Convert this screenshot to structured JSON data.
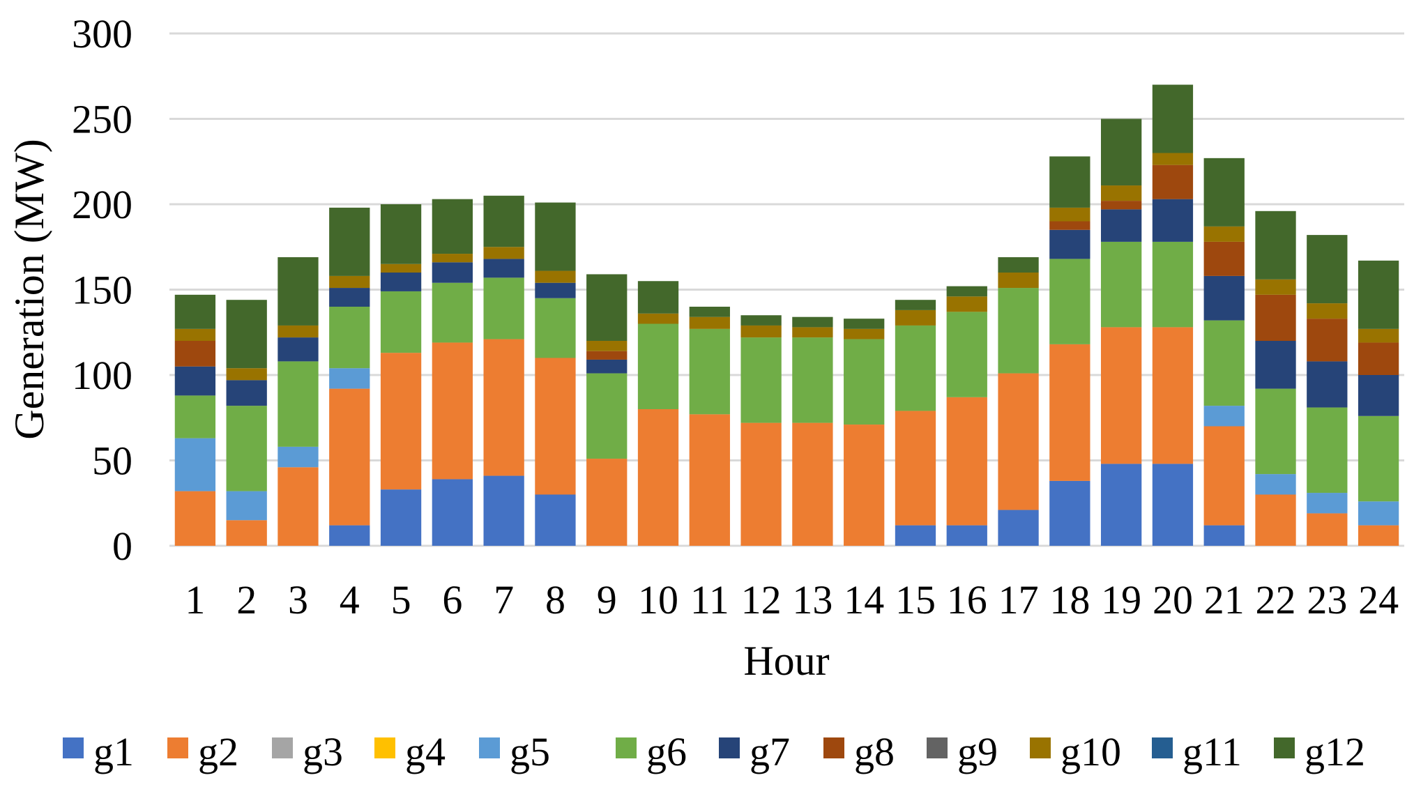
{
  "chart_data": {
    "type": "bar",
    "stacked": true,
    "title": "",
    "xlabel": "Hour",
    "ylabel": "Generation (MW)",
    "ylim": [
      0,
      300
    ],
    "yticks": [
      0,
      50,
      100,
      150,
      200,
      250,
      300
    ],
    "grid": true,
    "legend_position": "bottom",
    "categories": [
      "1",
      "2",
      "3",
      "4",
      "5",
      "6",
      "7",
      "8",
      "9",
      "10",
      "11",
      "12",
      "13",
      "14",
      "15",
      "16",
      "17",
      "18",
      "19",
      "20",
      "21",
      "22",
      "23",
      "24"
    ],
    "series": [
      {
        "name": "g1",
        "color": "#4472C4",
        "values": [
          0,
          0,
          0,
          12,
          33,
          39,
          41,
          30,
          0,
          0,
          0,
          0,
          0,
          0,
          12,
          12,
          21,
          38,
          48,
          48,
          12,
          0,
          0,
          0
        ]
      },
      {
        "name": "g2",
        "color": "#ED7D31",
        "values": [
          32,
          15,
          46,
          80,
          80,
          80,
          80,
          80,
          51,
          80,
          77,
          72,
          72,
          71,
          67,
          75,
          80,
          80,
          80,
          80,
          58,
          30,
          19,
          12
        ]
      },
      {
        "name": "g3",
        "color": "#A5A5A5",
        "values": [
          0,
          0,
          0,
          0,
          0,
          0,
          0,
          0,
          0,
          0,
          0,
          0,
          0,
          0,
          0,
          0,
          0,
          0,
          0,
          0,
          0,
          0,
          0,
          0
        ]
      },
      {
        "name": "g4",
        "color": "#FFC000",
        "values": [
          0,
          0,
          0,
          0,
          0,
          0,
          0,
          0,
          0,
          0,
          0,
          0,
          0,
          0,
          0,
          0,
          0,
          0,
          0,
          0,
          0,
          0,
          0,
          0
        ]
      },
      {
        "name": "g5",
        "color": "#5B9BD5",
        "values": [
          31,
          17,
          12,
          12,
          0,
          0,
          0,
          0,
          0,
          0,
          0,
          0,
          0,
          0,
          0,
          0,
          0,
          0,
          0,
          0,
          12,
          12,
          12,
          14
        ]
      },
      {
        "name": "g6",
        "color": "#70AD47",
        "values": [
          25,
          50,
          50,
          36,
          36,
          35,
          36,
          35,
          50,
          50,
          50,
          50,
          50,
          50,
          50,
          50,
          50,
          50,
          50,
          50,
          50,
          50,
          50,
          50
        ]
      },
      {
        "name": "g7",
        "color": "#264478",
        "values": [
          17,
          15,
          14,
          11,
          11,
          12,
          11,
          9,
          8,
          0,
          0,
          0,
          0,
          0,
          0,
          0,
          0,
          17,
          19,
          25,
          26,
          28,
          27,
          24
        ]
      },
      {
        "name": "g8",
        "color": "#9E480E",
        "values": [
          15,
          0,
          0,
          0,
          0,
          0,
          0,
          0,
          5,
          0,
          0,
          0,
          0,
          0,
          0,
          0,
          0,
          5,
          5,
          20,
          20,
          27,
          25,
          19
        ]
      },
      {
        "name": "g9",
        "color": "#636363",
        "values": [
          0,
          0,
          0,
          0,
          0,
          0,
          0,
          0,
          0,
          0,
          0,
          0,
          0,
          0,
          0,
          0,
          0,
          0,
          0,
          0,
          0,
          0,
          0,
          0
        ]
      },
      {
        "name": "g10",
        "color": "#997300",
        "values": [
          7,
          7,
          7,
          7,
          5,
          5,
          7,
          7,
          6,
          6,
          7,
          7,
          6,
          6,
          9,
          9,
          9,
          8,
          9,
          7,
          9,
          9,
          9,
          8
        ]
      },
      {
        "name": "g11",
        "color": "#255E91",
        "values": [
          0,
          0,
          0,
          0,
          0,
          0,
          0,
          0,
          0,
          0,
          0,
          0,
          0,
          0,
          0,
          0,
          0,
          0,
          0,
          0,
          0,
          0,
          0,
          0
        ]
      },
      {
        "name": "g12",
        "color": "#43682B",
        "values": [
          20,
          40,
          40,
          40,
          35,
          32,
          30,
          40,
          39,
          19,
          6,
          6,
          6,
          6,
          6,
          6,
          9,
          30,
          39,
          40,
          40,
          40,
          40,
          40
        ]
      }
    ]
  }
}
